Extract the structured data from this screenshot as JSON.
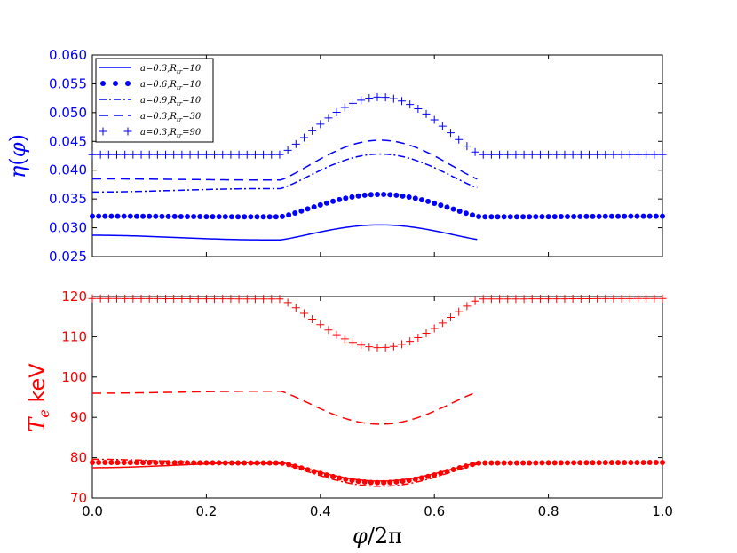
{
  "chart_data": [
    {
      "type": "line",
      "panel": "top",
      "ylabel": "η(φ)",
      "xlabel": "",
      "ylim": [
        0.025,
        0.06
      ],
      "xlim": [
        0.0,
        1.0
      ],
      "yticks": [
        "0.025",
        "0.030",
        "0.035",
        "0.040",
        "0.045",
        "0.050",
        "0.055",
        "0.060"
      ],
      "color": "#0000ff",
      "series": [
        {
          "name": "a=0.3,R_tr=10",
          "label": "a=0.3,R",
          "sub": "tr",
          "tail": "=10",
          "style": "solid",
          "base": 0.0287,
          "dip": 0.0279,
          "peak": 0.0305
        },
        {
          "name": "a=0.6,R_tr=10",
          "label": "a=0.6,R",
          "sub": "tr",
          "tail": "=10",
          "style": "dots",
          "base": 0.032,
          "dip": 0.0319,
          "peak": 0.0358
        },
        {
          "name": "a=0.9,R_tr=10",
          "label": "a=0.9,R",
          "sub": "tr",
          "tail": "=10",
          "style": "dashdot",
          "base": 0.0362,
          "dip": 0.0368,
          "peak": 0.0428
        },
        {
          "name": "a=0.3,R_tr=30",
          "label": "a=0.3,R",
          "sub": "tr",
          "tail": "=30",
          "style": "dashed",
          "base": 0.0385,
          "dip": 0.0383,
          "peak": 0.0452
        },
        {
          "name": "a=0.3,R_tr=90",
          "label": "a=0.3,R",
          "sub": "tr",
          "tail": "=90",
          "style": "plus",
          "base": 0.0427,
          "dip": 0.0427,
          "peak": 0.0527
        }
      ]
    },
    {
      "type": "line",
      "panel": "bottom",
      "ylabel": "T_e keV",
      "xlabel": "φ/2π",
      "ylim": [
        70,
        120
      ],
      "xlim": [
        0.0,
        1.0
      ],
      "yticks": [
        "70",
        "80",
        "90",
        "100",
        "110",
        "120"
      ],
      "xticks": [
        "0.0",
        "0.2",
        "0.4",
        "0.6",
        "0.8",
        "1.0"
      ],
      "color": "#ff0000",
      "series": [
        {
          "name": "a=0.3,R_tr=10",
          "style": "solid",
          "base": 77.5,
          "dip": 78.8,
          "peak": 74.2
        },
        {
          "name": "a=0.6,R_tr=10",
          "style": "dots",
          "base": 78.8,
          "dip": 78.7,
          "peak": 73.8
        },
        {
          "name": "a=0.9,R_tr=10",
          "style": "dashdot",
          "base": 79.6,
          "dip": 78.5,
          "peak": 72.9
        },
        {
          "name": "a=0.3,R_tr=30",
          "style": "dashed",
          "base": 96.0,
          "dip": 96.5,
          "peak": 88.3
        },
        {
          "name": "a=0.3,R_tr=90",
          "style": "plus",
          "base": 119.5,
          "dip": 119.4,
          "peak": 107.3
        }
      ]
    }
  ],
  "labels": {
    "top_ylabel_eta": "η",
    "top_ylabel_open": "(",
    "top_ylabel_phi": "φ",
    "top_ylabel_close": ")",
    "bottom_ylabel_T": "T",
    "bottom_ylabel_sub": "e",
    "bottom_ylabel_unit": " keV",
    "xlabel_phi": "φ",
    "xlabel_rest": "/2π"
  }
}
